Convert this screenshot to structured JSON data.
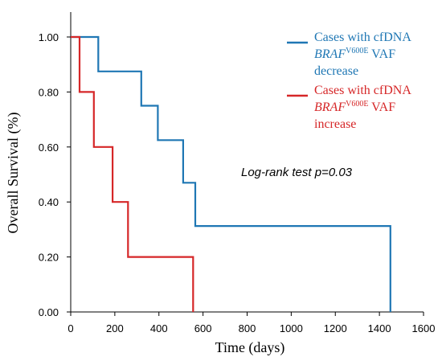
{
  "chart_data": {
    "type": "line",
    "xlabel": "Time (days)",
    "ylabel": "Overall Survival (%)",
    "xlim": [
      0,
      1600
    ],
    "ylim": [
      0,
      1
    ],
    "x_ticks": [
      0,
      200,
      400,
      600,
      800,
      1000,
      1200,
      1400,
      1600
    ],
    "y_ticks": [
      "0.00",
      "0.20",
      "0.40",
      "0.60",
      "0.80",
      "1.00"
    ],
    "grid": false,
    "legend_position": "top-right",
    "annotation": "Log-rank test p=0.03",
    "series": [
      {
        "legend_parts": [
          "Cases with cfDNA",
          "BRAF",
          "V600E",
          " VAF",
          "decrease"
        ],
        "color": "#1f77b4",
        "step_points": [
          [
            0,
            1.0
          ],
          [
            125,
            1.0
          ],
          [
            125,
            0.875
          ],
          [
            320,
            0.875
          ],
          [
            320,
            0.75
          ],
          [
            395,
            0.75
          ],
          [
            395,
            0.625
          ],
          [
            510,
            0.625
          ],
          [
            510,
            0.47
          ],
          [
            565,
            0.47
          ],
          [
            565,
            0.3125
          ],
          [
            1450,
            0.3125
          ],
          [
            1450,
            0.0
          ]
        ]
      },
      {
        "legend_parts": [
          "Cases with cfDNA",
          "BRAF",
          "V600E",
          " VAF",
          "increase"
        ],
        "color": "#d62728",
        "step_points": [
          [
            0,
            1.0
          ],
          [
            40,
            1.0
          ],
          [
            40,
            0.8
          ],
          [
            105,
            0.8
          ],
          [
            105,
            0.6
          ],
          [
            190,
            0.6
          ],
          [
            190,
            0.4
          ],
          [
            260,
            0.4
          ],
          [
            260,
            0.2
          ],
          [
            555,
            0.2
          ],
          [
            555,
            0.0
          ]
        ]
      }
    ]
  }
}
